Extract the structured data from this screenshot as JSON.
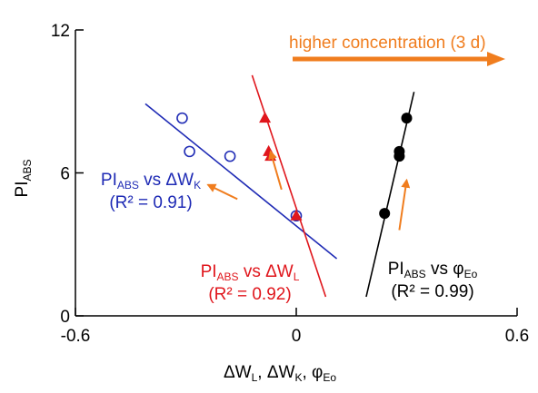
{
  "chart_data": {
    "type": "scatter",
    "title": "",
    "xlabel": {
      "parts": [
        [
          "ΔW",
          ""
        ],
        [
          "L",
          "sub"
        ],
        [
          ", ΔW",
          ""
        ],
        [
          "K",
          "sub"
        ],
        [
          ", φ",
          ""
        ],
        [
          "Eo",
          "sub"
        ]
      ]
    },
    "ylabel": {
      "parts": [
        [
          "PI",
          ""
        ],
        [
          "ABS",
          "sub"
        ]
      ]
    },
    "xlim": [
      -0.6,
      0.6
    ],
    "ylim": [
      0,
      12
    ],
    "xticks": [
      -0.6,
      0,
      0.6
    ],
    "xtick_labels": [
      "-0.6",
      "0",
      "0.6"
    ],
    "yticks": [
      0,
      6,
      12
    ],
    "ytick_labels": [
      "0",
      "6",
      "12"
    ],
    "grid": false,
    "annotations": [
      {
        "text": "higher concentration (3 d)",
        "color": "#f07d1e"
      }
    ],
    "series": [
      {
        "marker": "open-circle",
        "color": "#1f2bb5",
        "x": [
          -0.31,
          -0.29,
          -0.18,
          0.0
        ],
        "y": [
          8.3,
          6.9,
          6.7,
          4.2
        ],
        "fit": {
          "x": [
            -0.41,
            0.11
          ],
          "y": [
            8.9,
            2.4
          ]
        },
        "label": {
          "parts": [
            [
              "PI",
              ""
            ],
            [
              "ABS",
              "sub"
            ],
            [
              " vs ΔW",
              ""
            ],
            [
              "K",
              "sub"
            ]
          ]
        },
        "r2_text": "(R² = 0.91)",
        "trend_arrow": {
          "from": [
            -0.16,
            4.9
          ],
          "to": [
            -0.24,
            5.5
          ]
        }
      },
      {
        "marker": "filled-triangle",
        "color": "#e0161c",
        "x": [
          -0.085,
          -0.075,
          -0.07,
          0.0
        ],
        "y": [
          8.3,
          6.9,
          6.7,
          4.2
        ],
        "fit": {
          "x": [
            -0.12,
            0.08
          ],
          "y": [
            10.1,
            0.8
          ]
        },
        "label": {
          "parts": [
            [
              "PI",
              ""
            ],
            [
              "ABS",
              "sub"
            ],
            [
              " vs ΔW",
              ""
            ],
            [
              "L",
              "sub"
            ]
          ]
        },
        "r2_text": "(R² = 0.92)",
        "trend_arrow": {
          "from": [
            -0.04,
            5.3
          ],
          "to": [
            -0.07,
            6.9
          ]
        }
      },
      {
        "marker": "filled-circle",
        "color": "#000000",
        "x": [
          0.24,
          0.28,
          0.28,
          0.3
        ],
        "y": [
          4.3,
          6.7,
          6.9,
          8.3
        ],
        "fit": {
          "x": [
            0.19,
            0.32
          ],
          "y": [
            0.8,
            9.4
          ]
        },
        "label": {
          "parts": [
            [
              "PI",
              ""
            ],
            [
              "ABS",
              "sub"
            ],
            [
              " vs φ",
              ""
            ],
            [
              "Eo",
              "sub"
            ]
          ]
        },
        "r2_text": "(R² = 0.99)",
        "trend_arrow": {
          "from": [
            0.28,
            3.6
          ],
          "to": [
            0.3,
            5.7
          ]
        }
      }
    ]
  }
}
